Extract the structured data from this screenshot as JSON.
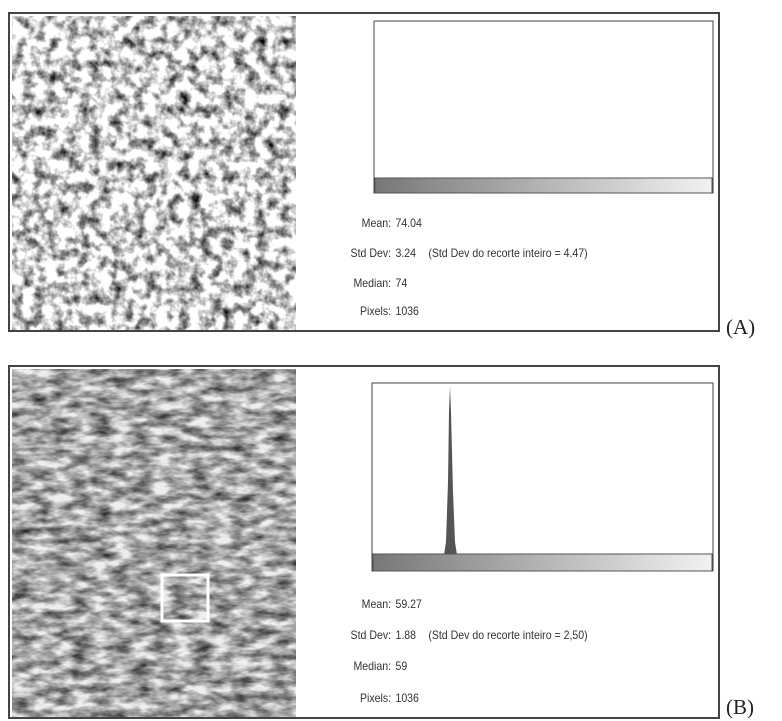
{
  "panels": [
    {
      "label": "(A)",
      "stats": {
        "mean_label": "Mean:",
        "mean": "74.04",
        "std_label": "Std Dev:",
        "std": "3.24",
        "note": "(Std Dev  do recorte inteiro = 4.47)",
        "median_label": "Median:",
        "median": "74",
        "pixels_label": "Pixels:",
        "pixels": "1036"
      }
    },
    {
      "label": "(B)",
      "stats": {
        "mean_label": "Mean:",
        "mean": "59.27",
        "std_label": "Std Dev:",
        "std": "1.88",
        "note": "(Std Dev do recorte inteiro = 2,50)",
        "median_label": "Median:",
        "median": "59",
        "pixels_label": "Pixels:",
        "pixels": "1036"
      }
    }
  ]
}
